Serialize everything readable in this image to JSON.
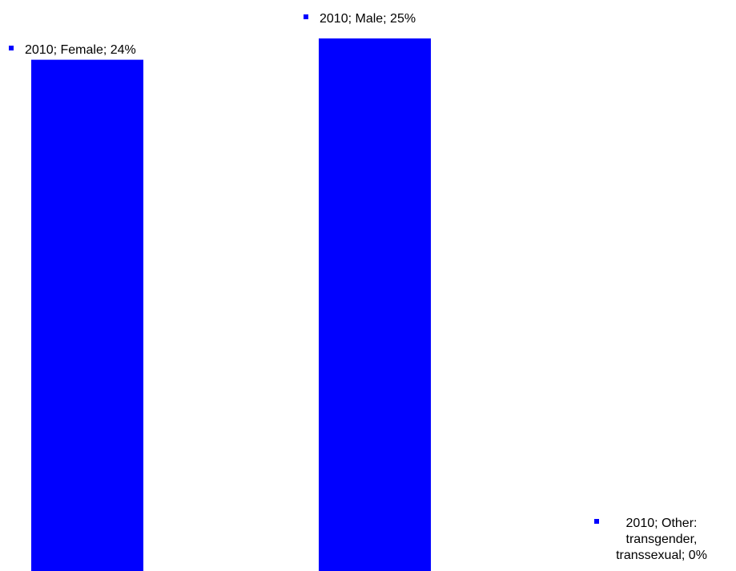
{
  "chart_data": {
    "type": "bar",
    "categories": [
      "Female",
      "Male",
      "Other: transgender, transsexual"
    ],
    "series": [
      {
        "values": [
          24,
          25,
          0
        ]
      }
    ],
    "ylim": [
      0,
      25
    ],
    "grid": false,
    "axes_visible": false,
    "bar_color": "#0000FF",
    "marker_color": "#0000FF",
    "data_labels": [
      [
        "2010; Female; 24%"
      ],
      [
        "2010; Male; 25%"
      ],
      [
        "2010; Other:",
        "transgender,",
        "transsexual; 0%"
      ]
    ]
  }
}
